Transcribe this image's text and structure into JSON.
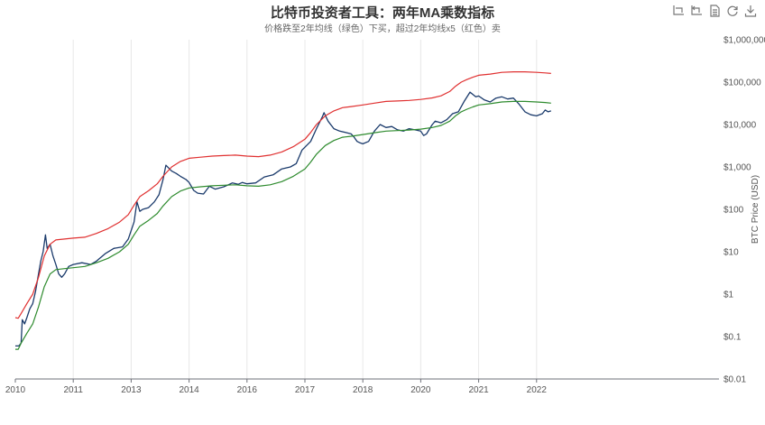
{
  "chart_data": {
    "type": "line",
    "title": "比特币投资者工具：两年MA乘数指标",
    "subtitle": "价格跌至2年均线（绿色）下买，超过2年均线x5（红色）卖",
    "ylabel": "BTC Price (USD)",
    "yscale": "log",
    "ylim": [
      0.01,
      1000000
    ],
    "xlim": [
      2010.0,
      2022.15
    ],
    "x_ticks": [
      "2010",
      "2011",
      "2013",
      "2014",
      "2016",
      "2017",
      "2018",
      "2020",
      "2021",
      "2022"
    ],
    "x_tick_positions": [
      2010,
      2011,
      2012,
      2013,
      2014,
      2015,
      2016,
      2017,
      2018,
      2019
    ],
    "y_ticks": [
      {
        "value": 1000000,
        "label": "$1,000,000"
      },
      {
        "value": 100000,
        "label": "$100,000"
      },
      {
        "value": 10000,
        "label": "$10,000"
      },
      {
        "value": 1000,
        "label": "$1,000"
      },
      {
        "value": 100,
        "label": "$100"
      },
      {
        "value": 10,
        "label": "$10"
      },
      {
        "value": 1,
        "label": "$1"
      },
      {
        "value": 0.1,
        "label": "$0.1"
      },
      {
        "value": 0.01,
        "label": "$0.01"
      }
    ],
    "series": [
      {
        "color": "#1a3a6b",
        "points": [
          [
            2010.0,
            0.06
          ],
          [
            2010.06,
            0.06
          ],
          [
            2010.1,
            0.07
          ],
          [
            2010.12,
            0.25
          ],
          [
            2010.16,
            0.2
          ],
          [
            2010.2,
            0.28
          ],
          [
            2010.25,
            0.45
          ],
          [
            2010.3,
            0.6
          ],
          [
            2010.35,
            1.2
          ],
          [
            2010.4,
            3
          ],
          [
            2010.44,
            6
          ],
          [
            2010.48,
            10
          ],
          [
            2010.52,
            25
          ],
          [
            2010.55,
            12
          ],
          [
            2010.6,
            15
          ],
          [
            2010.65,
            8
          ],
          [
            2010.7,
            5
          ],
          [
            2010.75,
            3
          ],
          [
            2010.8,
            2.5
          ],
          [
            2010.85,
            3
          ],
          [
            2010.92,
            4.5
          ],
          [
            2011.0,
            5
          ],
          [
            2011.15,
            5.5
          ],
          [
            2011.3,
            5
          ],
          [
            2011.4,
            6
          ],
          [
            2011.55,
            9
          ],
          [
            2011.7,
            12
          ],
          [
            2011.85,
            13
          ],
          [
            2011.95,
            20
          ],
          [
            2012.05,
            50
          ],
          [
            2012.1,
            150
          ],
          [
            2012.15,
            90
          ],
          [
            2012.2,
            100
          ],
          [
            2012.3,
            110
          ],
          [
            2012.4,
            150
          ],
          [
            2012.48,
            220
          ],
          [
            2012.55,
            500
          ],
          [
            2012.6,
            1100
          ],
          [
            2012.7,
            800
          ],
          [
            2012.78,
            700
          ],
          [
            2012.85,
            600
          ],
          [
            2012.95,
            500
          ],
          [
            2013.0,
            430
          ],
          [
            2013.08,
            280
          ],
          [
            2013.15,
            240
          ],
          [
            2013.25,
            230
          ],
          [
            2013.35,
            350
          ],
          [
            2013.45,
            300
          ],
          [
            2013.6,
            340
          ],
          [
            2013.75,
            420
          ],
          [
            2013.85,
            390
          ],
          [
            2013.92,
            430
          ],
          [
            2014.0,
            400
          ],
          [
            2014.15,
            420
          ],
          [
            2014.3,
            580
          ],
          [
            2014.45,
            650
          ],
          [
            2014.6,
            900
          ],
          [
            2014.75,
            1000
          ],
          [
            2014.85,
            1200
          ],
          [
            2014.95,
            2500
          ],
          [
            2015.1,
            4000
          ],
          [
            2015.2,
            8000
          ],
          [
            2015.3,
            15000
          ],
          [
            2015.33,
            19000
          ],
          [
            2015.4,
            12000
          ],
          [
            2015.5,
            8000
          ],
          [
            2015.6,
            7000
          ],
          [
            2015.7,
            6500
          ],
          [
            2015.8,
            6000
          ],
          [
            2015.85,
            5000
          ],
          [
            2015.9,
            4000
          ],
          [
            2015.95,
            3700
          ],
          [
            2016.0,
            3500
          ],
          [
            2016.1,
            4000
          ],
          [
            2016.2,
            7000
          ],
          [
            2016.3,
            10000
          ],
          [
            2016.4,
            8500
          ],
          [
            2016.5,
            9000
          ],
          [
            2016.6,
            7500
          ],
          [
            2016.7,
            7000
          ],
          [
            2016.8,
            8000
          ],
          [
            2016.9,
            7500
          ],
          [
            2017.0,
            7000
          ],
          [
            2017.05,
            5500
          ],
          [
            2017.1,
            6000
          ],
          [
            2017.2,
            10000
          ],
          [
            2017.25,
            12000
          ],
          [
            2017.35,
            11000
          ],
          [
            2017.45,
            13000
          ],
          [
            2017.55,
            18000
          ],
          [
            2017.65,
            20000
          ],
          [
            2017.75,
            35000
          ],
          [
            2017.85,
            58000
          ],
          [
            2017.95,
            45000
          ],
          [
            2018.0,
            47000
          ],
          [
            2018.1,
            38000
          ],
          [
            2018.2,
            34000
          ],
          [
            2018.3,
            42000
          ],
          [
            2018.4,
            45000
          ],
          [
            2018.5,
            40000
          ],
          [
            2018.6,
            42000
          ],
          [
            2018.7,
            30000
          ],
          [
            2018.8,
            20000
          ],
          [
            2018.9,
            17000
          ],
          [
            2019.0,
            16000
          ],
          [
            2019.1,
            18000
          ],
          [
            2019.15,
            22000
          ],
          [
            2019.2,
            20000
          ],
          [
            2019.25,
            21000
          ]
        ]
      },
      {
        "color": "#2e8b2e",
        "points": [
          [
            2010.0,
            0.05
          ],
          [
            2010.05,
            0.05
          ],
          [
            2010.1,
            0.07
          ],
          [
            2010.2,
            0.12
          ],
          [
            2010.3,
            0.2
          ],
          [
            2010.4,
            0.5
          ],
          [
            2010.5,
            1.5
          ],
          [
            2010.6,
            3
          ],
          [
            2010.7,
            3.8
          ],
          [
            2010.85,
            4
          ],
          [
            2011.0,
            4.2
          ],
          [
            2011.2,
            4.5
          ],
          [
            2011.4,
            5.5
          ],
          [
            2011.6,
            7
          ],
          [
            2011.8,
            10
          ],
          [
            2011.95,
            15
          ],
          [
            2012.05,
            25
          ],
          [
            2012.15,
            40
          ],
          [
            2012.3,
            55
          ],
          [
            2012.45,
            80
          ],
          [
            2012.55,
            120
          ],
          [
            2012.7,
            200
          ],
          [
            2012.85,
            270
          ],
          [
            2013.0,
            320
          ],
          [
            2013.2,
            340
          ],
          [
            2013.4,
            360
          ],
          [
            2013.6,
            370
          ],
          [
            2013.8,
            380
          ],
          [
            2014.0,
            360
          ],
          [
            2014.2,
            350
          ],
          [
            2014.4,
            380
          ],
          [
            2014.6,
            450
          ],
          [
            2014.8,
            600
          ],
          [
            2015.0,
            900
          ],
          [
            2015.1,
            1300
          ],
          [
            2015.2,
            2000
          ],
          [
            2015.35,
            3200
          ],
          [
            2015.5,
            4200
          ],
          [
            2015.65,
            5000
          ],
          [
            2015.8,
            5300
          ],
          [
            2016.0,
            5800
          ],
          [
            2016.2,
            6400
          ],
          [
            2016.4,
            7000
          ],
          [
            2016.6,
            7200
          ],
          [
            2016.8,
            7400
          ],
          [
            2017.0,
            7800
          ],
          [
            2017.2,
            8500
          ],
          [
            2017.35,
            9500
          ],
          [
            2017.5,
            12000
          ],
          [
            2017.6,
            16000
          ],
          [
            2017.7,
            20000
          ],
          [
            2017.8,
            23000
          ],
          [
            2017.9,
            26000
          ],
          [
            2018.0,
            29000
          ],
          [
            2018.2,
            31000
          ],
          [
            2018.4,
            34000
          ],
          [
            2018.6,
            35000
          ],
          [
            2018.8,
            35000
          ],
          [
            2019.0,
            34000
          ],
          [
            2019.15,
            33000
          ],
          [
            2019.25,
            32000
          ]
        ]
      },
      {
        "color": "#e03030",
        "points": [
          [
            2010.0,
            0.28
          ],
          [
            2010.05,
            0.27
          ],
          [
            2010.1,
            0.35
          ],
          [
            2010.2,
            0.6
          ],
          [
            2010.3,
            1
          ],
          [
            2010.4,
            2.5
          ],
          [
            2010.5,
            8
          ],
          [
            2010.6,
            15
          ],
          [
            2010.7,
            19
          ],
          [
            2010.85,
            20
          ],
          [
            2011.0,
            21
          ],
          [
            2011.2,
            22
          ],
          [
            2011.4,
            27
          ],
          [
            2011.6,
            35
          ],
          [
            2011.8,
            50
          ],
          [
            2011.95,
            75
          ],
          [
            2012.05,
            125
          ],
          [
            2012.15,
            200
          ],
          [
            2012.3,
            275
          ],
          [
            2012.45,
            400
          ],
          [
            2012.55,
            600
          ],
          [
            2012.7,
            1000
          ],
          [
            2012.85,
            1350
          ],
          [
            2013.0,
            1600
          ],
          [
            2013.2,
            1700
          ],
          [
            2013.4,
            1800
          ],
          [
            2013.6,
            1850
          ],
          [
            2013.8,
            1900
          ],
          [
            2014.0,
            1800
          ],
          [
            2014.2,
            1750
          ],
          [
            2014.4,
            1900
          ],
          [
            2014.6,
            2250
          ],
          [
            2014.8,
            3000
          ],
          [
            2015.0,
            4500
          ],
          [
            2015.1,
            6500
          ],
          [
            2015.2,
            10000
          ],
          [
            2015.35,
            16000
          ],
          [
            2015.5,
            21000
          ],
          [
            2015.65,
            25000
          ],
          [
            2015.8,
            26500
          ],
          [
            2016.0,
            29000
          ],
          [
            2016.2,
            32000
          ],
          [
            2016.4,
            35000
          ],
          [
            2016.6,
            36000
          ],
          [
            2016.8,
            37000
          ],
          [
            2017.0,
            39000
          ],
          [
            2017.2,
            42500
          ],
          [
            2017.35,
            47500
          ],
          [
            2017.5,
            60000
          ],
          [
            2017.6,
            80000
          ],
          [
            2017.7,
            100000
          ],
          [
            2017.8,
            115000
          ],
          [
            2017.9,
            130000
          ],
          [
            2018.0,
            145000
          ],
          [
            2018.2,
            155000
          ],
          [
            2018.4,
            170000
          ],
          [
            2018.6,
            175000
          ],
          [
            2018.8,
            175000
          ],
          [
            2019.0,
            170000
          ],
          [
            2019.15,
            165000
          ],
          [
            2019.25,
            160000
          ]
        ]
      }
    ]
  },
  "toolbox": {
    "zoom_icon": "zoom-icon",
    "zoom_reset_icon": "zoom-reset-icon",
    "data_view_icon": "data-view-icon",
    "restore_icon": "restore-icon",
    "save_icon": "download-icon"
  }
}
